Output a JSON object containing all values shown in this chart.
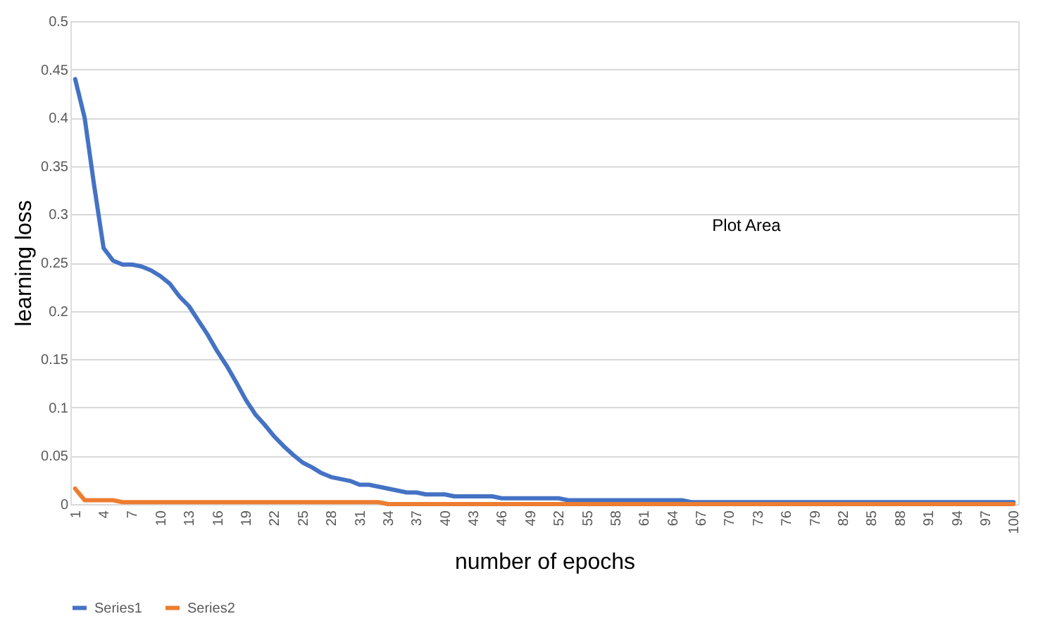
{
  "chart_data": {
    "type": "line",
    "xlabel": "number of epochs",
    "ylabel": "learning loss",
    "categories": [
      "1",
      null,
      null,
      "4",
      null,
      null,
      "7",
      null,
      null,
      "10",
      null,
      null,
      "13",
      null,
      null,
      "16",
      null,
      null,
      "19",
      null,
      null,
      "22",
      null,
      null,
      "25",
      null,
      null,
      "28",
      null,
      null,
      "31",
      null,
      null,
      "34",
      null,
      null,
      "37",
      null,
      null,
      "40",
      null,
      null,
      "43",
      null,
      null,
      "46",
      null,
      null,
      "49",
      null,
      null,
      "52",
      null,
      null,
      "55",
      null,
      null,
      "58",
      null,
      null,
      "61",
      null,
      null,
      "64",
      null,
      null,
      "67",
      null,
      null,
      "70",
      null,
      null,
      "73",
      null,
      null,
      "76",
      null,
      null,
      "79",
      null,
      null,
      "82",
      null,
      null,
      "85",
      null,
      null,
      "88",
      null,
      null,
      "91",
      null,
      null,
      "94",
      null,
      null,
      "97",
      null,
      null,
      "100"
    ],
    "series": [
      {
        "name": "Series1",
        "color": "#4472c4",
        "values": [
          0.44,
          0.4,
          0.33,
          0.265,
          0.252,
          0.248,
          0.248,
          0.246,
          0.242,
          0.236,
          0.228,
          0.215,
          0.205,
          0.19,
          0.175,
          0.158,
          0.143,
          0.126,
          0.108,
          0.093,
          0.082,
          0.07,
          0.06,
          0.051,
          0.043,
          0.038,
          0.032,
          0.028,
          0.026,
          0.024,
          0.02,
          0.02,
          0.018,
          0.016,
          0.014,
          0.012,
          0.012,
          0.01,
          0.01,
          0.01,
          0.008,
          0.008,
          0.008,
          0.008,
          0.008,
          0.006,
          0.006,
          0.006,
          0.006,
          0.006,
          0.006,
          0.006,
          0.004,
          0.004,
          0.004,
          0.004,
          0.004,
          0.004,
          0.004,
          0.004,
          0.004,
          0.004,
          0.004,
          0.004,
          0.004,
          0.002,
          0.002,
          0.002,
          0.002,
          0.002,
          0.002,
          0.002,
          0.002,
          0.002,
          0.002,
          0.002,
          0.002,
          0.002,
          0.002,
          0.002,
          0.002,
          0.002,
          0.002,
          0.002,
          0.002,
          0.002,
          0.002,
          0.002,
          0.002,
          0.002,
          0.002,
          0.002,
          0.002,
          0.002,
          0.002,
          0.002,
          0.002,
          0.002,
          0.002,
          0.002
        ]
      },
      {
        "name": "Series2",
        "color": "#ed7d31",
        "values": [
          0.016,
          0.004,
          0.004,
          0.004,
          0.004,
          0.002,
          0.002,
          0.002,
          0.002,
          0.002,
          0.002,
          0.002,
          0.002,
          0.002,
          0.002,
          0.002,
          0.002,
          0.002,
          0.002,
          0.002,
          0.002,
          0.002,
          0.002,
          0.002,
          0.002,
          0.002,
          0.002,
          0.002,
          0.002,
          0.002,
          0.002,
          0.002,
          0.002,
          0,
          0,
          0,
          0,
          0,
          0,
          0,
          0,
          0,
          0,
          0,
          0,
          0,
          0,
          0,
          0,
          0,
          0,
          0,
          0,
          0,
          0,
          0,
          0,
          0,
          0,
          0,
          0,
          0,
          0,
          0,
          0,
          0,
          0,
          0,
          0,
          0,
          0,
          0,
          0,
          0,
          0,
          0,
          0,
          0,
          0,
          0,
          0,
          0,
          0,
          0,
          0,
          0,
          0,
          0,
          0,
          0,
          0,
          0,
          0,
          0,
          0,
          0,
          0,
          0,
          0,
          0
        ]
      }
    ],
    "ylim": [
      0,
      0.5
    ],
    "yticks": [
      0,
      0.05,
      0.1,
      0.15,
      0.2,
      0.25,
      0.3,
      0.35,
      0.4,
      0.45,
      0.5
    ],
    "grid": "y",
    "legend": "bottom",
    "marker": "none",
    "line_style": "solid",
    "annotations": [
      "Plot Area"
    ]
  }
}
